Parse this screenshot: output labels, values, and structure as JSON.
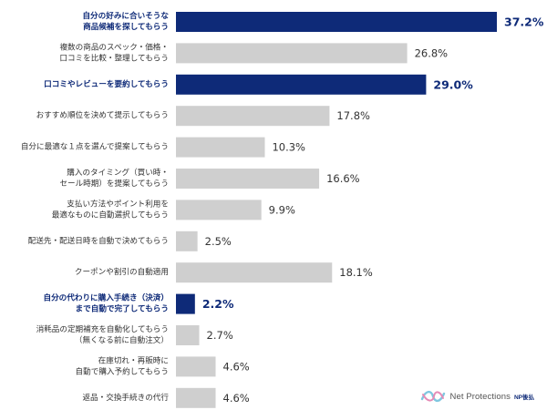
{
  "chart_data": {
    "type": "bar",
    "orientation": "horizontal",
    "title": "",
    "xlabel": "",
    "ylabel": "",
    "unit": "%",
    "xlim": [
      0,
      40
    ],
    "grid": false,
    "categories": [
      [
        "自分の好みに合いそうな",
        "商品候補を探してもらう"
      ],
      [
        "複数の商品のスペック・価格・",
        "口コミを比較・整理してもらう"
      ],
      [
        "口コミやレビューを要約してもらう"
      ],
      [
        "おすすめ順位を決めて提示してもらう"
      ],
      [
        "自分に最適な１点を選んで提案してもらう"
      ],
      [
        "購入のタイミング（買い時・",
        "セール時期）を提案してもらう"
      ],
      [
        "支払い方法やポイント利用を",
        "最適なものに自動選択してもらう"
      ],
      [
        "配送先・配送日時を自動で決めてもらう"
      ],
      [
        "クーポンや割引の自動適用"
      ],
      [
        "自分の代わりに購入手続き（決済）",
        "まで自動で完了してもらう"
      ],
      [
        "消耗品の定期補充を自動化してもらう",
        "（無くなる前に自動注文）"
      ],
      [
        "在庫切れ・再販時に",
        "自動で購入予約してもらう"
      ],
      [
        "返品・交換手続きの代行"
      ]
    ],
    "values": [
      37.2,
      26.8,
      29.0,
      17.8,
      10.3,
      16.6,
      9.9,
      2.5,
      18.1,
      2.2,
      2.7,
      4.6,
      4.6
    ],
    "value_labels": [
      "37.2%",
      "26.8%",
      "29.0%",
      "17.8%",
      "10.3%",
      "16.6%",
      "9.9%",
      "2.5%",
      "18.1%",
      "2.2%",
      "2.7%",
      "4.6%",
      "4.6%"
    ],
    "highlighted": [
      true,
      false,
      true,
      false,
      false,
      false,
      false,
      false,
      false,
      true,
      false,
      false,
      false
    ],
    "colors": {
      "highlight": "#0e2a78",
      "default": "#cfcfcf"
    }
  },
  "logo": {
    "brand": "Net Protections",
    "brand_sub": "NP後払",
    "icon": "np-ribbon-logo-icon"
  }
}
